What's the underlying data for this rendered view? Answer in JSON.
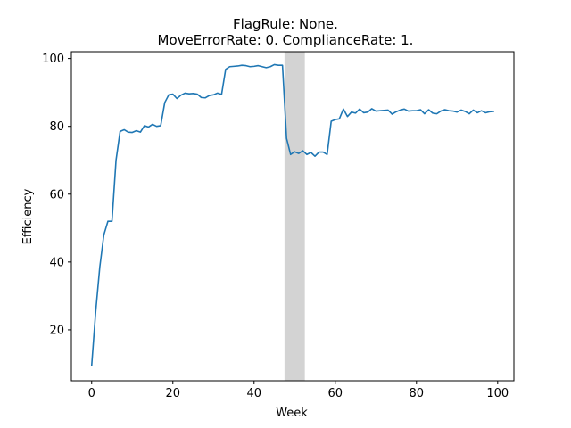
{
  "chart_data": {
    "type": "line",
    "title_lines": [
      "FlagRule: None.",
      "MoveErrorRate: 0. ComplianceRate: 1."
    ],
    "xlabel": "Week",
    "ylabel": "Efficiency",
    "xlim": [
      -5,
      104
    ],
    "ylim": [
      5,
      102
    ],
    "xticks": [
      0,
      20,
      40,
      60,
      80,
      100
    ],
    "yticks": [
      20,
      40,
      60,
      80,
      100
    ],
    "grid": false,
    "line_color": "#1f77b4",
    "shaded_region": {
      "x_start": 47.5,
      "x_end": 52.5,
      "color": "#d3d3d3"
    },
    "series": [
      {
        "x": [
          0,
          1,
          2,
          3,
          4,
          5,
          6,
          7,
          8,
          9,
          10,
          11,
          12,
          13,
          14,
          15,
          16,
          17,
          18,
          19,
          20,
          21,
          22,
          23,
          24,
          25,
          26,
          27,
          28,
          29,
          30,
          31,
          32,
          33,
          34,
          35,
          36,
          37,
          38,
          39,
          40,
          41,
          42,
          43,
          44,
          45,
          46,
          47,
          48,
          49,
          50,
          51,
          52,
          53,
          54,
          55,
          56,
          57,
          58,
          59,
          60,
          61,
          62,
          63,
          64,
          65,
          66,
          67,
          68,
          69,
          70,
          71,
          72,
          73,
          74,
          75,
          76,
          77,
          78,
          79,
          80,
          81,
          82,
          83,
          84,
          85,
          86,
          87,
          88,
          89,
          90,
          91,
          92,
          93,
          94,
          95,
          96,
          97,
          98,
          99
        ],
        "y": [
          9.5,
          25.5,
          38.5,
          48,
          52,
          52,
          70,
          78.5,
          79,
          78.3,
          78.2,
          78.7,
          78.3,
          80.2,
          79.8,
          80.6,
          80,
          80.2,
          87,
          89.3,
          89.5,
          88.2,
          89.2,
          89.8,
          89.6,
          89.7,
          89.5,
          88.5,
          88.4,
          89.1,
          89.3,
          89.8,
          89.4,
          96.8,
          97.6,
          97.7,
          97.8,
          98,
          97.9,
          97.6,
          97.7,
          97.9,
          97.6,
          97.3,
          97.6,
          98.2,
          98,
          98,
          76.5,
          71.7,
          72.5,
          72,
          72.8,
          71.7,
          72.3,
          71.2,
          72.4,
          72.4,
          71.7,
          81.5,
          82,
          82.2,
          85.1,
          82.9,
          84.2,
          83.9,
          85.1,
          84,
          84.2,
          85.2,
          84.5,
          84.6,
          84.7,
          84.8,
          83.6,
          84.3,
          84.8,
          85.1,
          84.5,
          84.6,
          84.6,
          84.9,
          83.7,
          84.9,
          83.9,
          83.7,
          84.5,
          84.9,
          84.6,
          84.5,
          84.2,
          84.8,
          84.4,
          83.7,
          84.8,
          84,
          84.6,
          84,
          84.3,
          84.4
        ]
      }
    ]
  }
}
